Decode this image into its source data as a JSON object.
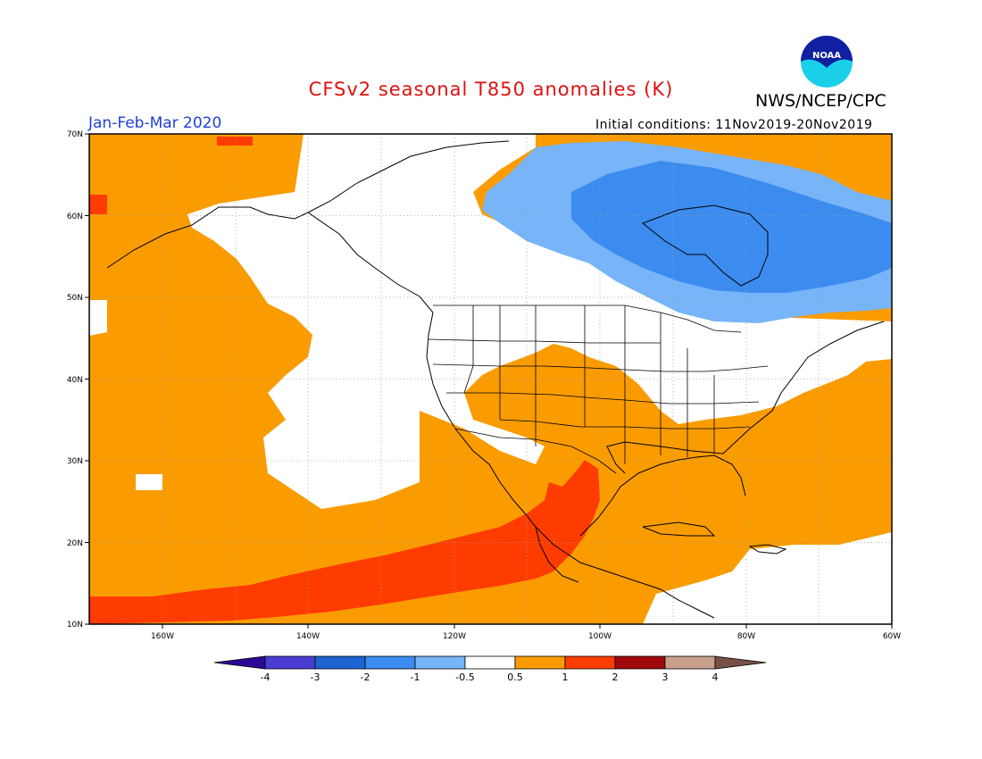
{
  "header": {
    "title": "CFSv2 seasonal T850 anomalies (K)",
    "agency": "NWS/NCEP/CPC",
    "logo_text": "NOAA",
    "period": "Jan-Feb-Mar 2020",
    "initial_conditions": "Initial conditions: 11Nov2019-20Nov2019"
  },
  "map": {
    "lat_labels": [
      "70N",
      "60N",
      "50N",
      "40N",
      "30N",
      "20N",
      "10N"
    ],
    "lon_labels": [
      "160W",
      "140W",
      "120W",
      "100W",
      "80W",
      "60W"
    ]
  },
  "legend": {
    "labels": [
      "-4",
      "-3",
      "-2",
      "-1",
      "-0.5",
      "0.5",
      "1",
      "2",
      "3",
      "4"
    ],
    "colors": [
      "#2a0a94",
      "#4a3cd0",
      "#1e64d2",
      "#3c8cf0",
      "#78b4f8",
      "#ffffff",
      "#fa9c00",
      "#ff3c00",
      "#a00a0a",
      "#c8a08c",
      "#785046"
    ]
  }
}
